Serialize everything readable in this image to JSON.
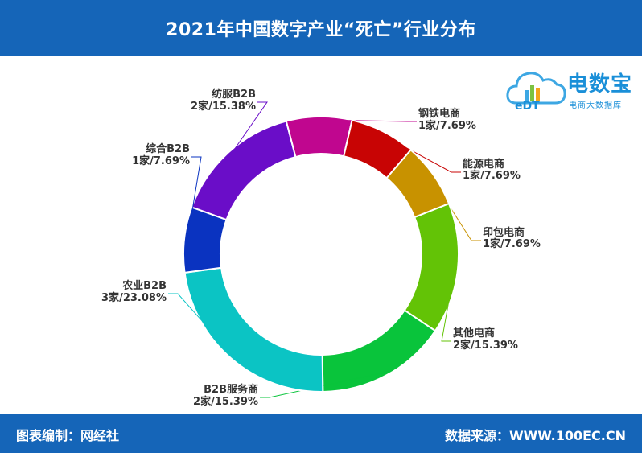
{
  "header": {
    "title": "2021年中国数字产业“死亡”行业分布"
  },
  "footer": {
    "left": "图表编制：网经社",
    "right": "数据来源：WWW.100EC.CN"
  },
  "logo": {
    "brand": "电数宝",
    "tagline": "电商大数据库",
    "icon_text": "eDT"
  },
  "chart_data": {
    "type": "pie",
    "donut": true,
    "series": [
      {
        "label": "纺服B2B",
        "value_text": "2家/15.38%",
        "value": 15.38,
        "color": "#6a0dc8"
      },
      {
        "label": "钢铁电商",
        "value_text": "1家/7.69%",
        "value": 7.69,
        "color": "#c0068f"
      },
      {
        "label": "能源电商",
        "value_text": "1家/7.69%",
        "value": 7.69,
        "color": "#c80404"
      },
      {
        "label": "印包电商",
        "value_text": "1家/7.69%",
        "value": 7.69,
        "color": "#c89200"
      },
      {
        "label": "其他电商",
        "value_text": "2家/15.39%",
        "value": 15.39,
        "color": "#63c306"
      },
      {
        "label": "B2B服务商",
        "value_text": "2家/15.39%",
        "value": 15.39,
        "color": "#09c43b"
      },
      {
        "label": "农业B2B",
        "value_text": "3家/23.08%",
        "value": 23.08,
        "color": "#0bc4c4"
      },
      {
        "label": "综合B2B",
        "value_text": "1家/7.69%",
        "value": 7.69,
        "color": "#0a33c0"
      }
    ]
  }
}
